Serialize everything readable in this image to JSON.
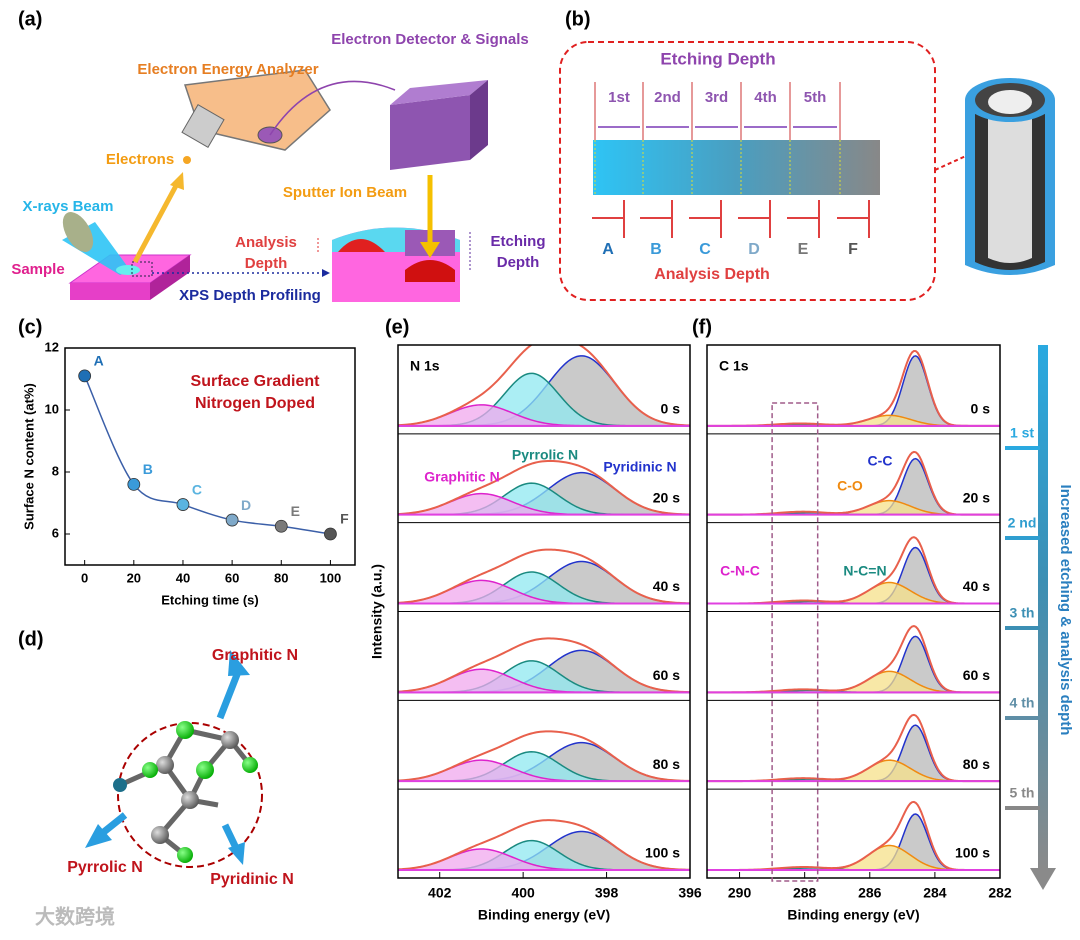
{
  "panel_labels": [
    "(a)",
    "(b)",
    "(c)",
    "(d)",
    "(e)",
    "(f)"
  ],
  "schematic_a": {
    "detector": "Electron Detector & Signals",
    "analyzer": "Electron Energy Analyzer",
    "electrons": "Electrons",
    "xray": "X-rays Beam",
    "sample": "Sample",
    "sputter": "Sputter Ion Beam",
    "analysis_depth": [
      "Analysis",
      "Depth"
    ],
    "etching_depth": [
      "Etching",
      "Depth"
    ],
    "profiling": "XPS Depth Profiling"
  },
  "schematic_b": {
    "title": "Etching Depth",
    "etch_steps": [
      "1st",
      "2nd",
      "3rd",
      "4th",
      "5th"
    ],
    "analysis_points": [
      "A",
      "B",
      "C",
      "D",
      "E",
      "F"
    ],
    "analysis_label": "Analysis Depth"
  },
  "chart_data": {
    "type": "scatter",
    "x": [
      0,
      20,
      40,
      60,
      80,
      100
    ],
    "values": [
      11.1,
      7.6,
      6.95,
      6.45,
      6.25,
      6.0
    ],
    "point_labels": [
      "A",
      "B",
      "C",
      "D",
      "E",
      "F"
    ],
    "colors": [
      "#1f6fb5",
      "#3a9ad9",
      "#5ab4e0",
      "#7fa9c9",
      "#7a7a7a",
      "#555555"
    ],
    "fit_color": "#3b5fa8",
    "xlabel": "Etching time (s)",
    "ylabel": "Surface N content (at%)",
    "annotation": [
      "Surface Gradient",
      "Nitrogen Doped"
    ],
    "xlim": [
      -8,
      110
    ],
    "ylim": [
      5,
      12
    ],
    "xticks": [
      0,
      20,
      40,
      60,
      80,
      100
    ],
    "yticks": [
      6,
      8,
      10,
      12
    ]
  },
  "structure_d": {
    "labels": [
      "Graphitic N",
      "Pyrrolic N",
      "Pyridinic N"
    ]
  },
  "spectra": [
    {
      "title": "N 1s",
      "xlabel": "Binding energy (eV)",
      "ylabel": "Intensity (a.u.)",
      "xlim": [
        403,
        396
      ],
      "xticks": [
        402,
        400,
        398,
        396
      ],
      "components": [
        {
          "name": "Pyridinic N",
          "center": 398.6,
          "sigma": 0.8,
          "line": "#2233cc",
          "fill": "#b8b8b8"
        },
        {
          "name": "Pyrrolic N",
          "center": 399.8,
          "sigma": 0.65,
          "line": "#1a8a80",
          "fill": "#8fe8f0"
        },
        {
          "name": "Graphitic N",
          "center": 401.0,
          "sigma": 0.75,
          "line": "#dd22cc",
          "fill": "#f0a8ee"
        }
      ],
      "series": [
        {
          "name": "0 s",
          "values": [
            1.0,
            0.75,
            0.3
          ]
        },
        {
          "name": "20 s",
          "values": [
            0.6,
            0.45,
            0.3
          ]
        },
        {
          "name": "40 s",
          "values": [
            0.6,
            0.45,
            0.33
          ]
        },
        {
          "name": "60 s",
          "values": [
            0.6,
            0.45,
            0.33
          ]
        },
        {
          "name": "80 s",
          "values": [
            0.55,
            0.42,
            0.3
          ]
        },
        {
          "name": "100 s",
          "values": [
            0.55,
            0.42,
            0.3
          ]
        }
      ]
    },
    {
      "title": "C 1s",
      "xlabel": "Binding energy (eV)",
      "xlim": [
        291,
        282
      ],
      "xticks": [
        290,
        288,
        286,
        284,
        282
      ],
      "highlight_range": [
        289,
        287.6
      ],
      "components": [
        {
          "name": "C-C",
          "center": 284.6,
          "sigma": 0.38,
          "line": "#2233cc",
          "fill": "#b8b8b8"
        },
        {
          "name": "C-O",
          "center": 285.4,
          "sigma": 0.65,
          "line": "#f08a10",
          "fill": "#f5e08a"
        },
        {
          "name": "C-N-C",
          "center": 288.5,
          "sigma": 0.6,
          "line": "#dd22cc",
          "fill": "#f0a8ee"
        },
        {
          "name": "N-C=N",
          "center": 287.8,
          "sigma": 0.6,
          "line": "#1a8a80",
          "fill": "#8fe8f0"
        }
      ],
      "series": [
        {
          "name": "0 s",
          "values": [
            1.0,
            0.15,
            0.02,
            0.02
          ]
        },
        {
          "name": "20 s",
          "values": [
            0.8,
            0.2,
            0.02,
            0.03
          ]
        },
        {
          "name": "40 s",
          "values": [
            0.8,
            0.3,
            0.02,
            0.03
          ]
        },
        {
          "name": "60 s",
          "values": [
            0.8,
            0.3,
            0.02,
            0.03
          ]
        },
        {
          "name": "80 s",
          "values": [
            0.8,
            0.3,
            0.02,
            0.03
          ]
        },
        {
          "name": "100 s",
          "values": [
            0.8,
            0.35,
            0.02,
            0.03
          ]
        }
      ]
    }
  ],
  "depth_arrow": {
    "label": "Increased etching & analysis depth",
    "steps": [
      "1 st",
      "2 nd",
      "3 th",
      "4 th",
      "5 th"
    ]
  },
  "watermark": "大数跨境"
}
